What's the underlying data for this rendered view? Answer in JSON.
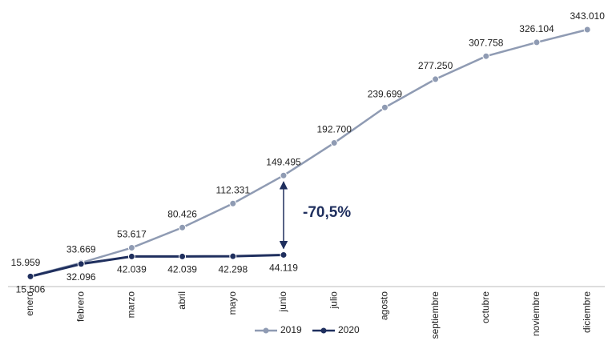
{
  "chart_data": {
    "type": "line",
    "categories": [
      "enero",
      "febrero",
      "marzo",
      "abril",
      "mayo",
      "junio",
      "julio",
      "agosto",
      "septiembre",
      "octubre",
      "noviembre",
      "diciembre"
    ],
    "series": [
      {
        "name": "2019",
        "color": "#8f9bb3",
        "values": [
          15959,
          33669,
          53617,
          80426,
          112331,
          149495,
          192700,
          239699,
          277250,
          307758,
          326104,
          343010
        ],
        "value_labels": [
          "15.959",
          "33.669",
          "53.617",
          "80.426",
          "112.331",
          "149.495",
          "192.700",
          "239.699",
          "277.250",
          "307.758",
          "326.104",
          "343.010"
        ]
      },
      {
        "name": "2020",
        "color": "#1f2f5e",
        "values": [
          15506,
          32096,
          42039,
          42039,
          42298,
          44119,
          null,
          null,
          null,
          null,
          null,
          null
        ],
        "value_labels": [
          "15.506",
          "32.096",
          "42.039",
          "42.039",
          "42.298",
          "44.119",
          null,
          null,
          null,
          null,
          null,
          null
        ]
      }
    ],
    "annotation": "-70,5%"
  }
}
